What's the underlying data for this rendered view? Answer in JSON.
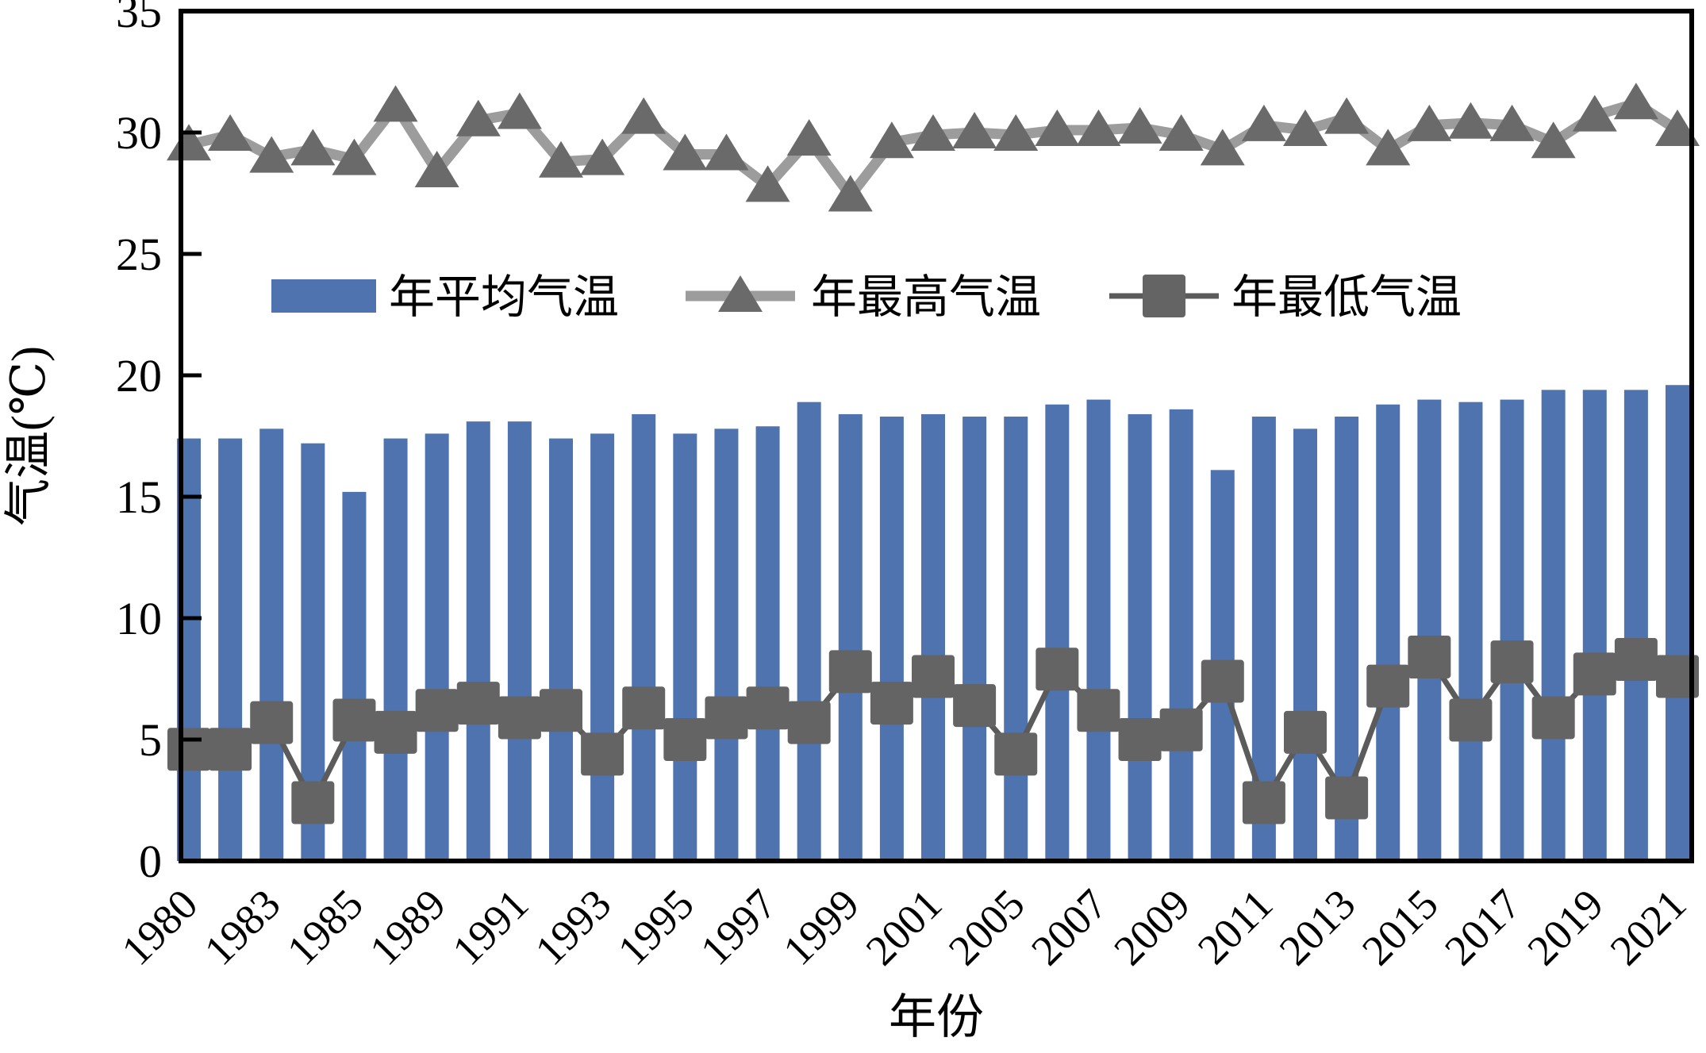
{
  "figure": {
    "background": "#ffffff"
  },
  "axes": {
    "y_title": "气温(℃)",
    "x_title": "年份",
    "y_ticks": [
      0,
      5,
      10,
      15,
      20,
      25,
      30,
      35
    ],
    "y_min": 0,
    "y_max": 35,
    "x_visible_tick_labels": [
      "1980",
      "1983",
      "1985",
      "1989",
      "1991",
      "1993",
      "1995",
      "1997",
      "1999",
      "2001",
      "2005",
      "2007",
      "2009",
      "2011",
      "2013",
      "2015",
      "2017",
      "2019",
      "2021"
    ]
  },
  "legend": {
    "items": [
      {
        "label": "年平均气温",
        "type": "bar-swatch"
      },
      {
        "label": "年最高气温",
        "type": "line-triangle"
      },
      {
        "label": "年最低气温",
        "type": "line-square"
      }
    ]
  },
  "colors": {
    "bar": "#4E73AE",
    "max_line": "#9C9C9C",
    "max_marker": "#6A6A6A",
    "min_line": "#5B5B5B",
    "min_marker": "#646464",
    "axis": "#000000",
    "text": "#000000"
  },
  "chart_data": {
    "type": "bar",
    "subtype": "bar-with-two-marker-lines",
    "title": "",
    "xlabel": "年份",
    "ylabel": "气温(℃)",
    "ylim": [
      0,
      35
    ],
    "grid": false,
    "legend_position": "inside-top-center",
    "x_label_rotation_deg": -45,
    "x_labels_shown_every": 2,
    "categories": [
      "1980",
      "1981",
      "1983",
      "1984",
      "1985",
      "1986",
      "1989",
      "1990",
      "1991",
      "1992",
      "1993",
      "1994",
      "1995",
      "1996",
      "1997",
      "1998",
      "1999",
      "2000",
      "2001",
      "2003",
      "2005",
      "2006",
      "2007",
      "2008",
      "2009",
      "2010",
      "2011",
      "2012",
      "2013",
      "2014",
      "2015",
      "2016",
      "2017",
      "2018",
      "2019",
      "2020",
      "2021"
    ],
    "series": [
      {
        "name": "年平均气温",
        "render": "bar",
        "values": [
          17.4,
          17.4,
          17.8,
          17.2,
          15.2,
          17.4,
          17.6,
          18.1,
          18.1,
          17.4,
          17.6,
          18.4,
          17.6,
          17.8,
          17.9,
          18.9,
          18.4,
          18.3,
          18.4,
          18.3,
          18.3,
          18.8,
          19.0,
          18.4,
          18.6,
          16.1,
          18.3,
          17.8,
          18.3,
          18.8,
          19.0,
          18.9,
          19.0,
          19.4,
          19.4,
          19.4,
          19.6
        ]
      },
      {
        "name": "年最高气温",
        "render": "line",
        "marker": "triangle",
        "values": [
          29.5,
          29.9,
          29.0,
          29.3,
          28.9,
          31.1,
          28.4,
          30.5,
          30.8,
          28.8,
          28.9,
          30.6,
          29.1,
          29.1,
          27.8,
          29.7,
          27.4,
          29.6,
          29.9,
          30.0,
          29.9,
          30.1,
          30.1,
          30.2,
          29.9,
          29.3,
          30.3,
          30.1,
          30.6,
          29.3,
          30.3,
          30.4,
          30.3,
          29.6,
          30.7,
          31.2,
          30.1
        ]
      },
      {
        "name": "年最低气温",
        "render": "line",
        "marker": "square",
        "values": [
          4.6,
          4.6,
          5.7,
          2.4,
          5.8,
          5.3,
          6.2,
          6.5,
          5.9,
          6.2,
          4.4,
          6.3,
          5.0,
          5.9,
          6.3,
          5.7,
          7.8,
          6.5,
          7.6,
          6.4,
          4.4,
          7.9,
          6.2,
          5.0,
          5.4,
          7.4,
          2.4,
          5.3,
          2.6,
          7.2,
          8.4,
          5.8,
          8.2,
          5.9,
          7.7,
          8.3,
          7.6
        ]
      }
    ]
  }
}
